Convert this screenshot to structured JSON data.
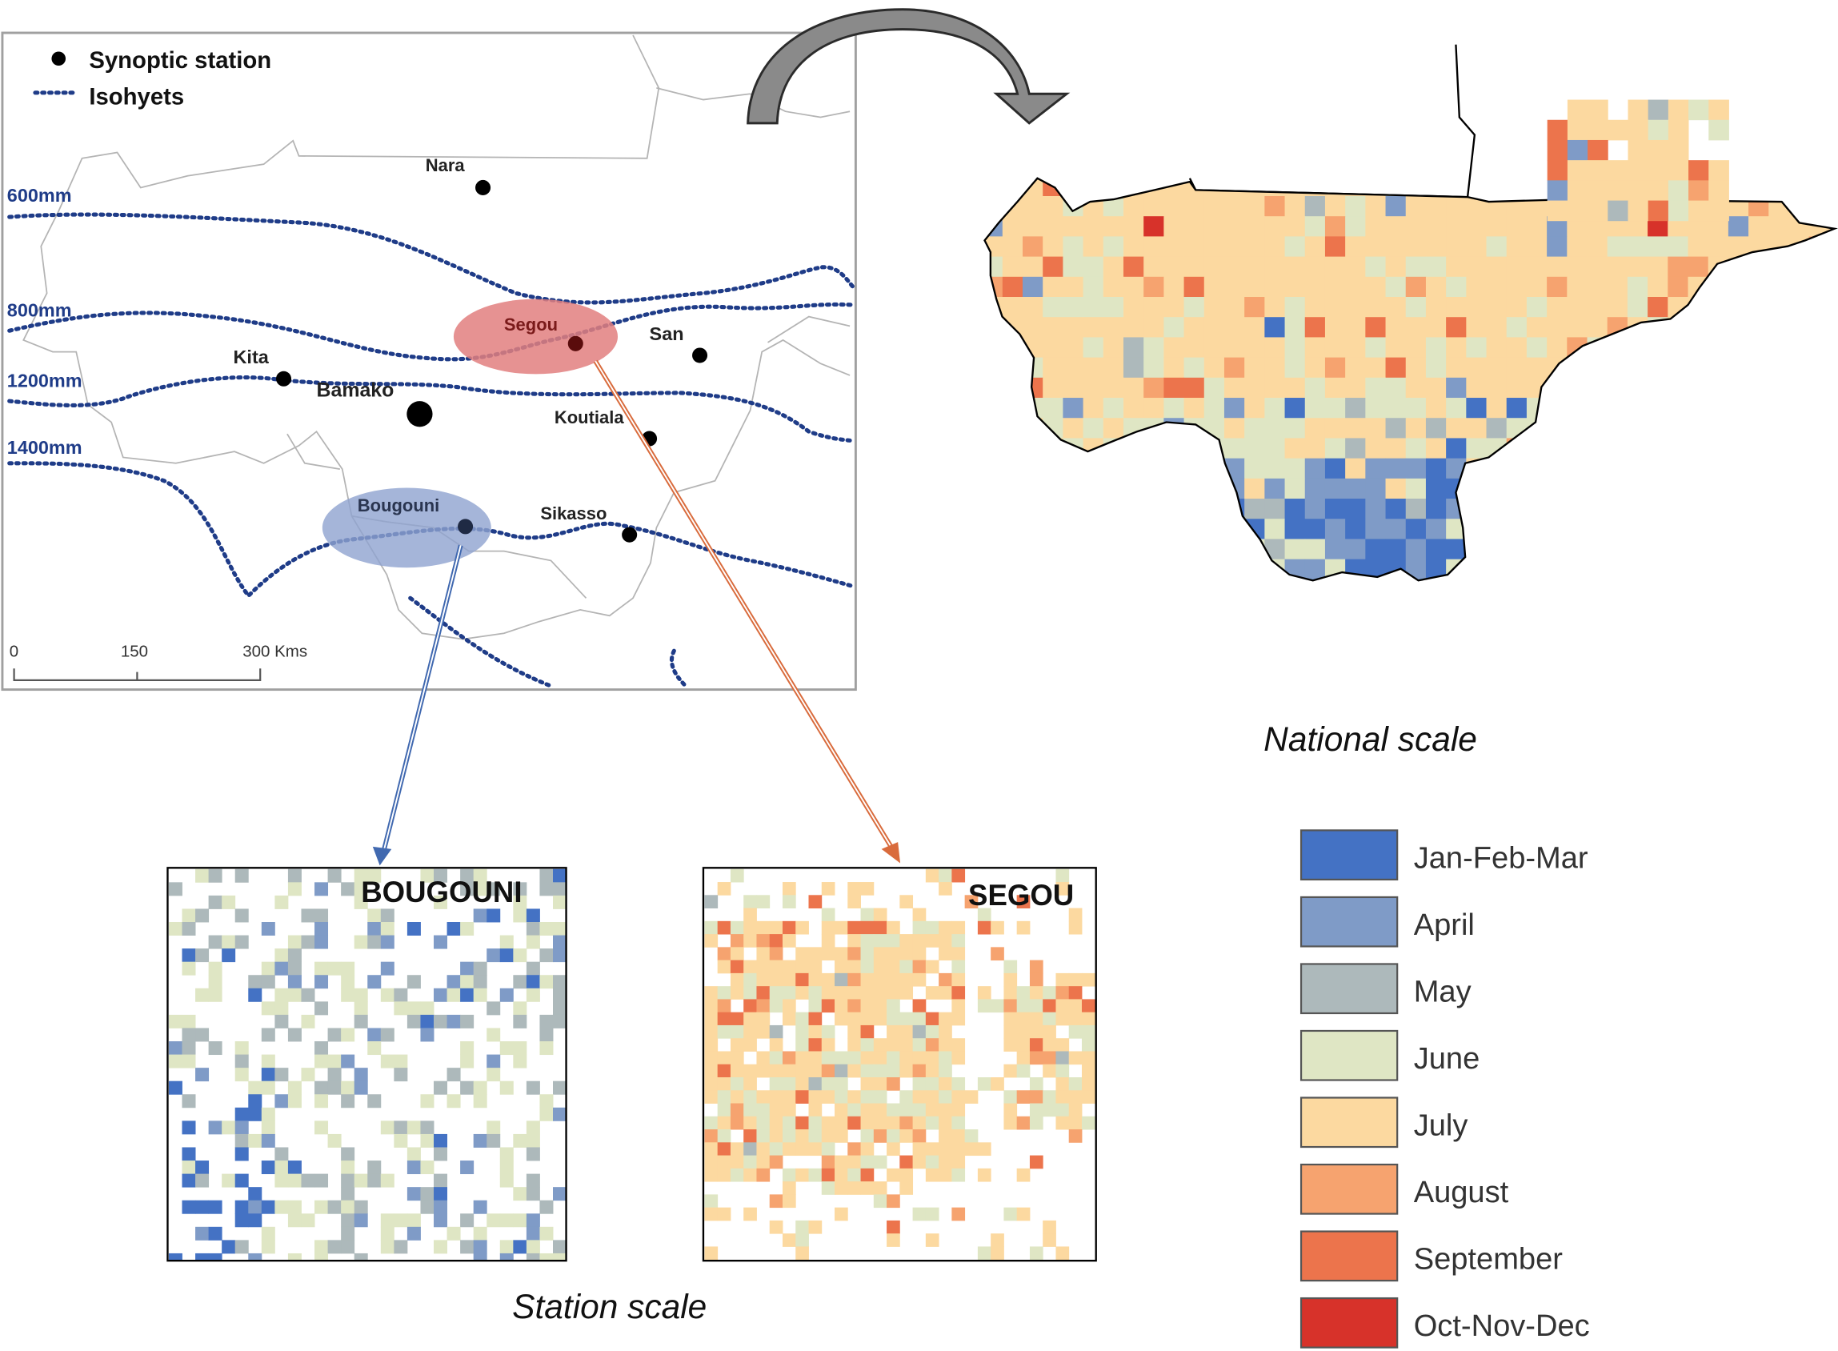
{
  "map_legend": {
    "station_label": "Synoptic station",
    "isohyet_label": "Isohyets"
  },
  "isohyets": [
    "600mm",
    "800mm",
    "1200mm",
    "1400mm"
  ],
  "stations": [
    {
      "id": "nara",
      "label": "Nara"
    },
    {
      "id": "segou",
      "label": "Segou"
    },
    {
      "id": "san",
      "label": "San"
    },
    {
      "id": "kita",
      "label": "Kita"
    },
    {
      "id": "bamako",
      "label": "Bamako"
    },
    {
      "id": "koutiala",
      "label": "Koutiala"
    },
    {
      "id": "bougouni",
      "label": "Bougouni"
    },
    {
      "id": "sikasso",
      "label": "Sikasso"
    }
  ],
  "scale_bar": [
    "0",
    "150",
    "300 Kms"
  ],
  "panels": {
    "bougouni_title": "BOUGOUNI",
    "segou_title": "SEGOU",
    "national_caption": "National scale",
    "station_caption": "Station scale"
  },
  "month_legend": [
    {
      "label": "Jan-Feb-Mar",
      "color": "#4472c4"
    },
    {
      "label": "April",
      "color": "#7f9bc7"
    },
    {
      "label": "May",
      "color": "#adb9bb"
    },
    {
      "label": "June",
      "color": "#dfe6c4"
    },
    {
      "label": "July",
      "color": "#fcd9a0"
    },
    {
      "label": "August",
      "color": "#f6a36f"
    },
    {
      "label": "September",
      "color": "#ec744c"
    },
    {
      "label": "Oct-Nov-Dec",
      "color": "#d7322a"
    }
  ],
  "colors": {
    "isohyet": "#1f3c88",
    "segou_highlight": "#e27f7f",
    "bougouni_highlight": "#8ea3cf",
    "segou_arrow": "#d96b3c",
    "bougouni_arrow": "#4169b0",
    "curved_arrow": "#8a8a8a"
  }
}
